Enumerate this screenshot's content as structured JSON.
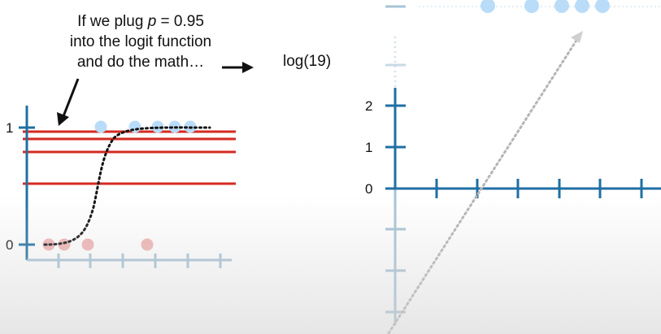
{
  "caption": {
    "line1": "If we plug p = 0.95",
    "line2": "into the logit function",
    "line3": "and do the math…"
  },
  "log_label": "log(19)",
  "left_plot": {
    "y_ticks": [
      "1",
      "0"
    ]
  },
  "right_plot": {
    "y_ticks": [
      "2",
      "1",
      "0"
    ]
  },
  "colors": {
    "axis_blue": "#1f6fa3",
    "axis_light": "#a9c3d6",
    "red_line": "#d42a20",
    "blue_dot": "#b9dcf8",
    "red_dot": "#f0b5b5"
  }
}
